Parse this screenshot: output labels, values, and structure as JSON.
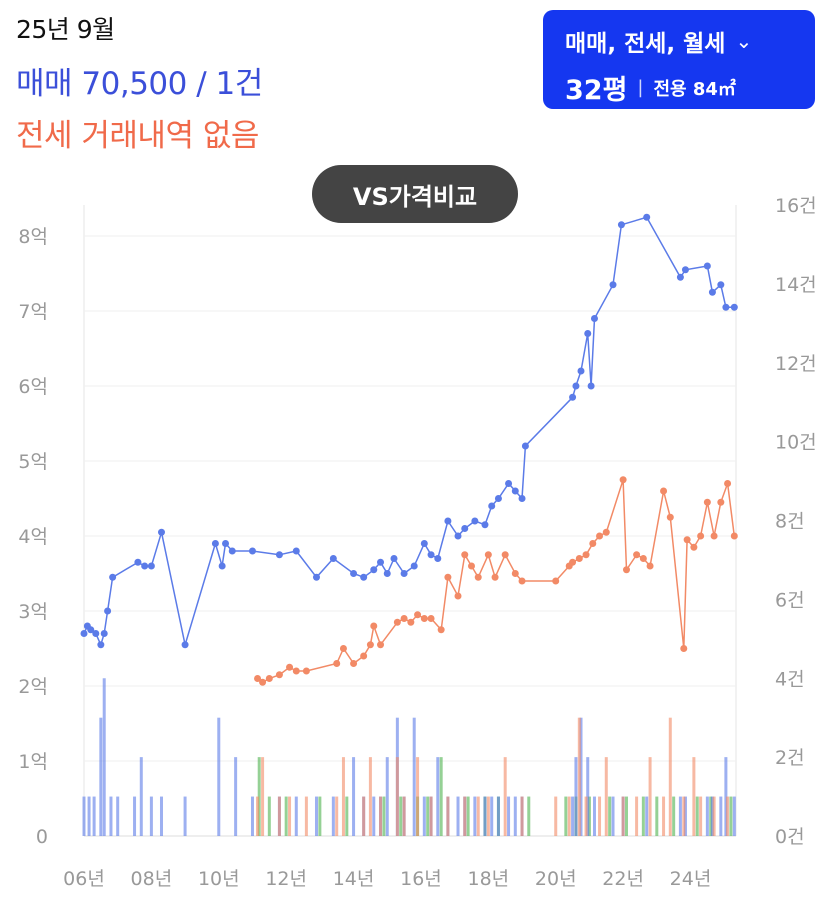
{
  "header": {
    "date": "25년 9월",
    "sale_summary": "매매 70,500 / 1건",
    "jeonse_summary": "전세 거래내역 없음"
  },
  "filter": {
    "types": "매매, 전세, 월세",
    "chevron_icon": "chevron-down-icon",
    "pyeong": "32평",
    "separator": "|",
    "area": "전용 84㎡"
  },
  "compare_button": "VS가격비교",
  "colors": {
    "sale": "#5b7be8",
    "jeonse": "#f28a66",
    "rent": "#5cb85c",
    "button_blue": "#1537f0"
  },
  "chart_data": {
    "type": "line",
    "x_tick_labels": [
      "06년",
      "08년",
      "10년",
      "12년",
      "14년",
      "16년",
      "18년",
      "20년",
      "22년",
      "24년"
    ],
    "y_left": {
      "ticks": [
        "0",
        "1억",
        "2억",
        "3억",
        "4억",
        "5억",
        "6억",
        "7억",
        "8억"
      ],
      "range": [
        0,
        8
      ]
    },
    "y_right": {
      "ticks": [
        "0건",
        "2건",
        "4건",
        "6건",
        "8건",
        "10건",
        "12건",
        "14건",
        "16건"
      ],
      "range": [
        0,
        16
      ]
    },
    "grid": true,
    "series": [
      {
        "name": "매매",
        "axis": "left",
        "points": [
          [
            2006.0,
            2.7
          ],
          [
            2006.1,
            2.8
          ],
          [
            2006.2,
            2.75
          ],
          [
            2006.35,
            2.7
          ],
          [
            2006.5,
            2.55
          ],
          [
            2006.6,
            2.7
          ],
          [
            2006.7,
            3.0
          ],
          [
            2006.85,
            3.45
          ],
          [
            2007.6,
            3.65
          ],
          [
            2007.8,
            3.6
          ],
          [
            2008.0,
            3.6
          ],
          [
            2008.3,
            4.05
          ],
          [
            2009.0,
            2.55
          ],
          [
            2009.9,
            3.9
          ],
          [
            2010.1,
            3.6
          ],
          [
            2010.2,
            3.9
          ],
          [
            2010.4,
            3.8
          ],
          [
            2011.0,
            3.8
          ],
          [
            2011.8,
            3.75
          ],
          [
            2012.3,
            3.8
          ],
          [
            2012.9,
            3.45
          ],
          [
            2013.4,
            3.7
          ],
          [
            2014.0,
            3.5
          ],
          [
            2014.3,
            3.45
          ],
          [
            2014.6,
            3.55
          ],
          [
            2014.8,
            3.65
          ],
          [
            2015.0,
            3.5
          ],
          [
            2015.2,
            3.7
          ],
          [
            2015.5,
            3.5
          ],
          [
            2015.8,
            3.6
          ],
          [
            2016.1,
            3.9
          ],
          [
            2016.3,
            3.75
          ],
          [
            2016.5,
            3.7
          ],
          [
            2016.8,
            4.2
          ],
          [
            2017.1,
            4.0
          ],
          [
            2017.3,
            4.1
          ],
          [
            2017.6,
            4.2
          ],
          [
            2017.9,
            4.15
          ],
          [
            2018.1,
            4.4
          ],
          [
            2018.3,
            4.5
          ],
          [
            2018.6,
            4.7
          ],
          [
            2018.8,
            4.6
          ],
          [
            2019.0,
            4.5
          ],
          [
            2019.1,
            5.2
          ],
          [
            2020.5,
            5.85
          ],
          [
            2020.6,
            6.0
          ],
          [
            2020.75,
            6.2
          ],
          [
            2020.95,
            6.7
          ],
          [
            2021.05,
            6.0
          ],
          [
            2021.15,
            6.9
          ],
          [
            2021.7,
            7.35
          ],
          [
            2021.95,
            8.15
          ],
          [
            2022.7,
            8.25
          ],
          [
            2023.7,
            7.45
          ],
          [
            2023.85,
            7.55
          ],
          [
            2024.5,
            7.6
          ],
          [
            2024.65,
            7.25
          ],
          [
            2024.9,
            7.35
          ],
          [
            2025.05,
            7.05
          ],
          [
            2025.3,
            7.05
          ]
        ]
      },
      {
        "name": "전세",
        "axis": "left",
        "points": [
          [
            2011.15,
            2.1
          ],
          [
            2011.3,
            2.05
          ],
          [
            2011.5,
            2.1
          ],
          [
            2011.8,
            2.15
          ],
          [
            2012.1,
            2.25
          ],
          [
            2012.3,
            2.2
          ],
          [
            2012.6,
            2.2
          ],
          [
            2013.5,
            2.3
          ],
          [
            2013.7,
            2.5
          ],
          [
            2014.0,
            2.3
          ],
          [
            2014.3,
            2.4
          ],
          [
            2014.5,
            2.55
          ],
          [
            2014.6,
            2.8
          ],
          [
            2014.8,
            2.55
          ],
          [
            2015.3,
            2.85
          ],
          [
            2015.5,
            2.9
          ],
          [
            2015.7,
            2.85
          ],
          [
            2015.9,
            2.95
          ],
          [
            2016.1,
            2.9
          ],
          [
            2016.3,
            2.9
          ],
          [
            2016.6,
            2.75
          ],
          [
            2016.8,
            3.45
          ],
          [
            2017.1,
            3.2
          ],
          [
            2017.3,
            3.75
          ],
          [
            2017.5,
            3.6
          ],
          [
            2017.7,
            3.45
          ],
          [
            2018.0,
            3.75
          ],
          [
            2018.2,
            3.45
          ],
          [
            2018.5,
            3.75
          ],
          [
            2018.8,
            3.5
          ],
          [
            2019.0,
            3.4
          ],
          [
            2020.0,
            3.4
          ],
          [
            2020.4,
            3.6
          ],
          [
            2020.5,
            3.65
          ],
          [
            2020.7,
            3.7
          ],
          [
            2020.9,
            3.75
          ],
          [
            2021.1,
            3.9
          ],
          [
            2021.3,
            4.0
          ],
          [
            2021.5,
            4.05
          ],
          [
            2022.0,
            4.75
          ],
          [
            2022.1,
            3.55
          ],
          [
            2022.4,
            3.75
          ],
          [
            2022.6,
            3.7
          ],
          [
            2022.8,
            3.6
          ],
          [
            2023.2,
            4.6
          ],
          [
            2023.4,
            4.25
          ],
          [
            2023.8,
            2.5
          ],
          [
            2023.9,
            3.95
          ],
          [
            2024.1,
            3.85
          ],
          [
            2024.3,
            4.0
          ],
          [
            2024.5,
            4.45
          ],
          [
            2024.7,
            4.0
          ],
          [
            2024.9,
            4.45
          ],
          [
            2025.1,
            4.7
          ],
          [
            2025.3,
            4.0
          ]
        ]
      }
    ],
    "volume_bars": {
      "axis": "right",
      "sale_counts": [
        [
          2006.0,
          1
        ],
        [
          2006.15,
          1
        ],
        [
          2006.3,
          1
        ],
        [
          2006.5,
          3
        ],
        [
          2006.6,
          4
        ],
        [
          2006.8,
          1
        ],
        [
          2007.0,
          1
        ],
        [
          2007.5,
          1
        ],
        [
          2007.7,
          2
        ],
        [
          2008.0,
          1
        ],
        [
          2008.3,
          1
        ],
        [
          2009.0,
          1
        ],
        [
          2010.0,
          3
        ],
        [
          2010.5,
          2
        ],
        [
          2011.0,
          1
        ],
        [
          2011.8,
          1
        ],
        [
          2012.3,
          1
        ],
        [
          2012.9,
          1
        ],
        [
          2013.4,
          1
        ],
        [
          2014.0,
          2
        ],
        [
          2014.3,
          1
        ],
        [
          2014.6,
          1
        ],
        [
          2014.8,
          1
        ],
        [
          2015.0,
          2
        ],
        [
          2015.3,
          3
        ],
        [
          2015.5,
          1
        ],
        [
          2015.8,
          3
        ],
        [
          2016.1,
          1
        ],
        [
          2016.3,
          1
        ],
        [
          2016.5,
          2
        ],
        [
          2016.8,
          1
        ],
        [
          2017.1,
          1
        ],
        [
          2017.3,
          1
        ],
        [
          2017.6,
          1
        ],
        [
          2017.9,
          1
        ],
        [
          2018.1,
          1
        ],
        [
          2018.3,
          1
        ],
        [
          2018.6,
          1
        ],
        [
          2018.8,
          1
        ],
        [
          2019.0,
          1
        ],
        [
          2020.5,
          1
        ],
        [
          2020.6,
          2
        ],
        [
          2020.75,
          3
        ],
        [
          2020.95,
          2
        ],
        [
          2021.15,
          1
        ],
        [
          2021.7,
          1
        ],
        [
          2022.0,
          1
        ],
        [
          2022.7,
          1
        ],
        [
          2023.7,
          1
        ],
        [
          2023.85,
          1
        ],
        [
          2024.5,
          1
        ],
        [
          2024.65,
          1
        ],
        [
          2024.9,
          1
        ],
        [
          2025.05,
          2
        ],
        [
          2025.3,
          1
        ]
      ],
      "jeonse_counts": [
        [
          2011.15,
          1
        ],
        [
          2011.3,
          2
        ],
        [
          2011.8,
          1
        ],
        [
          2012.1,
          1
        ],
        [
          2012.6,
          1
        ],
        [
          2013.5,
          1
        ],
        [
          2013.7,
          2
        ],
        [
          2014.3,
          1
        ],
        [
          2014.5,
          2
        ],
        [
          2014.8,
          1
        ],
        [
          2015.3,
          2
        ],
        [
          2015.5,
          1
        ],
        [
          2015.9,
          2
        ],
        [
          2016.3,
          1
        ],
        [
          2016.8,
          1
        ],
        [
          2017.3,
          1
        ],
        [
          2017.7,
          1
        ],
        [
          2018.0,
          1
        ],
        [
          2018.5,
          2
        ],
        [
          2019.0,
          1
        ],
        [
          2020.0,
          1
        ],
        [
          2020.4,
          1
        ],
        [
          2020.7,
          3
        ],
        [
          2020.9,
          1
        ],
        [
          2021.3,
          1
        ],
        [
          2021.5,
          2
        ],
        [
          2022.0,
          1
        ],
        [
          2022.4,
          1
        ],
        [
          2022.8,
          2
        ],
        [
          2023.2,
          1
        ],
        [
          2023.4,
          3
        ],
        [
          2023.8,
          1
        ],
        [
          2024.1,
          2
        ],
        [
          2024.3,
          1
        ],
        [
          2024.7,
          1
        ],
        [
          2025.1,
          1
        ]
      ],
      "rent_counts": [
        [
          2011.2,
          2
        ],
        [
          2011.5,
          1
        ],
        [
          2012.0,
          1
        ],
        [
          2013.0,
          1
        ],
        [
          2013.8,
          1
        ],
        [
          2014.9,
          1
        ],
        [
          2015.4,
          1
        ],
        [
          2015.9,
          1
        ],
        [
          2016.2,
          1
        ],
        [
          2016.6,
          2
        ],
        [
          2017.4,
          1
        ],
        [
          2017.9,
          1
        ],
        [
          2018.3,
          1
        ],
        [
          2019.2,
          1
        ],
        [
          2020.3,
          1
        ],
        [
          2020.6,
          1
        ],
        [
          2021.0,
          1
        ],
        [
          2021.6,
          1
        ],
        [
          2022.1,
          1
        ],
        [
          2022.6,
          1
        ],
        [
          2023.0,
          1
        ],
        [
          2023.5,
          1
        ],
        [
          2024.2,
          1
        ],
        [
          2024.6,
          1
        ],
        [
          2025.2,
          1
        ]
      ]
    }
  }
}
